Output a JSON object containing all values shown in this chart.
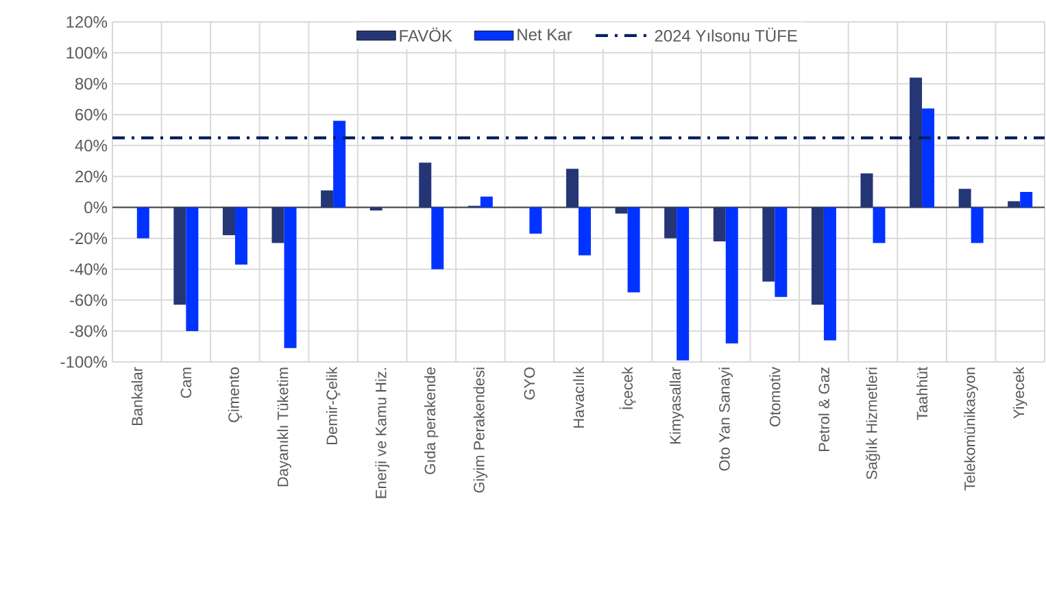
{
  "chart_data": {
    "type": "bar",
    "categories": [
      "Bankalar",
      "Cam",
      "Çimento",
      "Dayanıklı Tüketim",
      "Demir-Çelik",
      "Enerji ve Kamu Hiz.",
      "Gıda perakende",
      "Giyim Perakendesi",
      "GYO",
      "Havacılık",
      "İçecek",
      "Kimyasallar",
      "Oto Yan Sanayi",
      "Otomotiv",
      "Petrol & Gaz",
      "Sağlık Hizmetleri",
      "Taahhüt",
      "Telekomünikasyon",
      "Yiyecek"
    ],
    "series": [
      {
        "name": "FAVÖK",
        "color": "#253676",
        "values": [
          0,
          -63,
          -18,
          -23,
          11,
          -2,
          29,
          1,
          0,
          25,
          -4,
          -20,
          -22,
          -48,
          -63,
          22,
          84,
          12,
          4
        ]
      },
      {
        "name": "Net Kar",
        "color": "#0033ff",
        "values": [
          -20,
          -80,
          -37,
          -91,
          56,
          0,
          -40,
          7,
          -17,
          -31,
          -55,
          -99,
          -88,
          -58,
          -86,
          -23,
          64,
          -23,
          10
        ]
      }
    ],
    "ylim": [
      -100,
      120
    ],
    "yticks": [
      {
        "value": -100,
        "label": "-100%"
      },
      {
        "value": -80,
        "label": "-80%"
      },
      {
        "value": -60,
        "label": "-60%"
      },
      {
        "value": -40,
        "label": "-40%"
      },
      {
        "value": -20,
        "label": "-20%"
      },
      {
        "value": 0,
        "label": "0%"
      },
      {
        "value": 20,
        "label": "20%"
      },
      {
        "value": 40,
        "label": "40%"
      },
      {
        "value": 60,
        "label": "60%"
      },
      {
        "value": 80,
        "label": "80%"
      },
      {
        "value": 100,
        "label": "100%"
      },
      {
        "value": 120,
        "label": "120%"
      }
    ],
    "ref_lines": [
      {
        "axis": "y",
        "value": 45,
        "label": "2024 Yılsonu TÜFE",
        "color": "#002060",
        "line_style": "dashdot"
      }
    ],
    "grid": true,
    "legend": "top"
  }
}
